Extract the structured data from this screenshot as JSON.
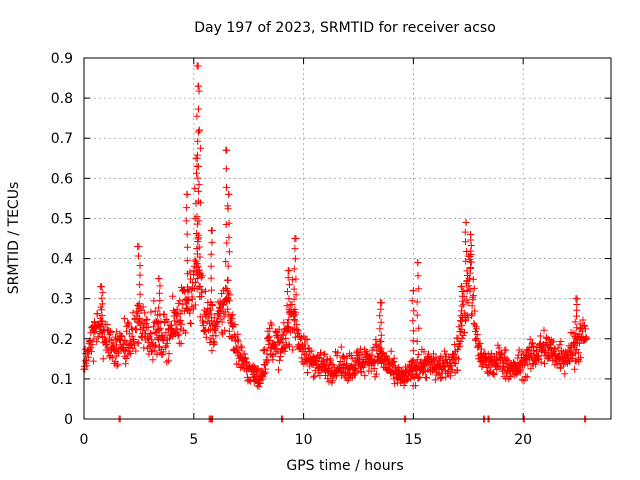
{
  "chart_data": {
    "type": "scatter",
    "title": "Day 197 of 2023, SRMTID for receiver acso",
    "xlabel": "GPS time / hours",
    "ylabel": "SRMTID / TECUs",
    "xlim": [
      0,
      24
    ],
    "ylim": [
      0,
      0.9
    ],
    "xticks": [
      0,
      5,
      10,
      15,
      20
    ],
    "xtick_labels": [
      "0",
      "5",
      "10",
      "15",
      "20"
    ],
    "yticks": [
      0,
      0.1,
      0.2,
      0.3,
      0.4,
      0.5,
      0.6,
      0.7,
      0.8,
      0.9
    ],
    "ytick_labels": [
      "0",
      "0.1",
      "0.2",
      "0.3",
      "0.4",
      "0.5",
      "0.6",
      "0.7",
      "0.8",
      "0.9"
    ],
    "grid": true,
    "marker": "+",
    "color": "#ff0000",
    "x_range_of_data": [
      0,
      22.9
    ],
    "profile": {
      "x": [
        0,
        0.3,
        0.6,
        1.0,
        1.5,
        2.0,
        2.5,
        3.0,
        3.5,
        4.0,
        4.5,
        5.0,
        5.2,
        5.5,
        6.0,
        6.5,
        7.0,
        7.5,
        8.0,
        8.5,
        9.0,
        9.5,
        10.0,
        11.0,
        12.0,
        13.0,
        13.5,
        14.0,
        14.5,
        15.0,
        15.5,
        16.0,
        16.5,
        17.0,
        17.3,
        17.6,
        18.0,
        18.5,
        19.0,
        19.5,
        20.0,
        20.5,
        21.0,
        21.5,
        22.0,
        22.5,
        22.9
      ],
      "y": [
        0.12,
        0.19,
        0.23,
        0.2,
        0.17,
        0.19,
        0.24,
        0.22,
        0.2,
        0.22,
        0.28,
        0.32,
        0.38,
        0.25,
        0.22,
        0.3,
        0.17,
        0.12,
        0.1,
        0.2,
        0.17,
        0.27,
        0.16,
        0.13,
        0.13,
        0.15,
        0.16,
        0.12,
        0.1,
        0.12,
        0.14,
        0.13,
        0.13,
        0.16,
        0.27,
        0.35,
        0.16,
        0.13,
        0.15,
        0.12,
        0.14,
        0.16,
        0.18,
        0.16,
        0.16,
        0.19,
        0.22
      ]
    },
    "peaks": [
      {
        "x": 0.8,
        "y": 0.33
      },
      {
        "x": 2.5,
        "y": 0.43
      },
      {
        "x": 3.4,
        "y": 0.35
      },
      {
        "x": 4.7,
        "y": 0.56
      },
      {
        "x": 5.1,
        "y": 0.65
      },
      {
        "x": 5.2,
        "y": 0.88
      },
      {
        "x": 5.22,
        "y": 0.83
      },
      {
        "x": 5.25,
        "y": 0.72
      },
      {
        "x": 5.8,
        "y": 0.47
      },
      {
        "x": 6.5,
        "y": 0.67
      },
      {
        "x": 6.6,
        "y": 0.56
      },
      {
        "x": 9.6,
        "y": 0.45
      },
      {
        "x": 9.3,
        "y": 0.37
      },
      {
        "x": 13.5,
        "y": 0.29
      },
      {
        "x": 15.2,
        "y": 0.39
      },
      {
        "x": 15.0,
        "y": 0.32
      },
      {
        "x": 17.4,
        "y": 0.49
      },
      {
        "x": 17.6,
        "y": 0.46
      },
      {
        "x": 17.2,
        "y": 0.33
      },
      {
        "x": 22.4,
        "y": 0.3
      }
    ],
    "zero_points": [
      1.6,
      5.7,
      5.8,
      9.0,
      14.6,
      18.2,
      18.4,
      20.0,
      22.8
    ]
  }
}
